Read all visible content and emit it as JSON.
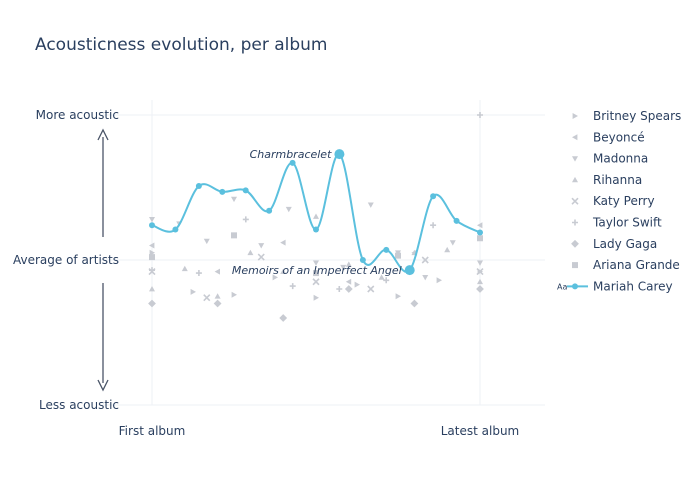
{
  "chart_data": {
    "type": "line",
    "title": "Acousticness evolution, per album",
    "x_tick_labels": [
      "First album",
      "Latest album"
    ],
    "y_tick_labels": [
      "More acoustic",
      "Average of artists",
      "Less acoustic"
    ],
    "xlim": [
      0,
      1
    ],
    "ylim": [
      -1,
      1
    ],
    "grid": true,
    "legend_position": "right",
    "highlight_color": "#5bc0de",
    "muted_color": "#c8cbd2",
    "arrow_color": "#4a5568",
    "series": [
      {
        "name": "Britney Spears",
        "symbol": "triangle-right",
        "highlight": false,
        "x": [
          0.0,
          0.125,
          0.25,
          0.375,
          0.5,
          0.625,
          0.75,
          0.875,
          1.0
        ],
        "y": [
          0.05,
          -0.22,
          -0.24,
          -0.12,
          -0.26,
          -0.17,
          -0.25,
          -0.14,
          -0.08
        ]
      },
      {
        "name": "Beyoncé",
        "symbol": "triangle-left",
        "highlight": false,
        "x": [
          0.0,
          0.2,
          0.4,
          0.6,
          0.8,
          1.0
        ],
        "y": [
          0.1,
          -0.08,
          0.12,
          -0.15,
          0.05,
          0.24
        ]
      },
      {
        "name": "Madonna",
        "symbol": "triangle-down",
        "highlight": false,
        "x": [
          0.0,
          0.083,
          0.167,
          0.25,
          0.333,
          0.417,
          0.5,
          0.583,
          0.667,
          0.75,
          0.833,
          0.917,
          1.0
        ],
        "y": [
          0.28,
          0.25,
          0.13,
          0.42,
          0.1,
          0.35,
          -0.02,
          -0.05,
          0.38,
          0.05,
          -0.12,
          0.12,
          -0.02
        ]
      },
      {
        "name": "Rihanna",
        "symbol": "triangle-up",
        "highlight": false,
        "x": [
          0.0,
          0.1,
          0.2,
          0.3,
          0.4,
          0.5,
          0.6,
          0.7,
          0.8,
          0.9,
          1.0
        ],
        "y": [
          -0.2,
          -0.06,
          -0.25,
          0.05,
          -0.08,
          0.3,
          -0.03,
          -0.12,
          0.05,
          0.07,
          -0.15
        ]
      },
      {
        "name": "Katy Perry",
        "symbol": "x",
        "highlight": false,
        "x": [
          0.0,
          0.167,
          0.333,
          0.5,
          0.667,
          0.833,
          1.0
        ],
        "y": [
          -0.08,
          -0.26,
          0.02,
          -0.15,
          -0.2,
          0.0,
          -0.08
        ]
      },
      {
        "name": "Taylor Swift",
        "symbol": "cross",
        "highlight": false,
        "x": [
          0.0,
          0.143,
          0.286,
          0.429,
          0.571,
          0.714,
          0.857,
          1.0
        ],
        "y": [
          -0.07,
          -0.09,
          0.28,
          -0.18,
          -0.2,
          -0.14,
          0.24,
          1.0
        ]
      },
      {
        "name": "Lady Gaga",
        "symbol": "diamond",
        "highlight": false,
        "x": [
          0.0,
          0.2,
          0.4,
          0.6,
          0.8,
          1.0
        ],
        "y": [
          -0.3,
          -0.3,
          -0.4,
          -0.2,
          -0.3,
          -0.2
        ]
      },
      {
        "name": "Ariana Grande",
        "symbol": "square",
        "highlight": false,
        "x": [
          0.0,
          0.25,
          0.5,
          0.75,
          1.0
        ],
        "y": [
          0.02,
          0.17,
          -0.09,
          0.03,
          0.15
        ]
      },
      {
        "name": "Mariah Carey",
        "symbol": "circle",
        "highlight": true,
        "x": [
          0.0,
          0.0714,
          0.1429,
          0.2143,
          0.2857,
          0.3571,
          0.4286,
          0.5,
          0.5714,
          0.6429,
          0.7143,
          0.7857,
          0.8571,
          0.9286,
          1.0
        ],
        "y": [
          0.24,
          0.21,
          0.51,
          0.47,
          0.48,
          0.34,
          0.67,
          0.21,
          0.73,
          0.0,
          0.07,
          -0.07,
          0.44,
          0.27,
          0.19
        ]
      }
    ],
    "annotations": [
      {
        "text": "Charmbracelet",
        "series": "Mariah Carey",
        "x": 0.5714,
        "y": 0.73,
        "side": "left"
      },
      {
        "text": "Memoirs of an Imperfect Angel",
        "series": "Mariah Carey",
        "x": 0.7857,
        "y": -0.07,
        "side": "left"
      }
    ]
  }
}
